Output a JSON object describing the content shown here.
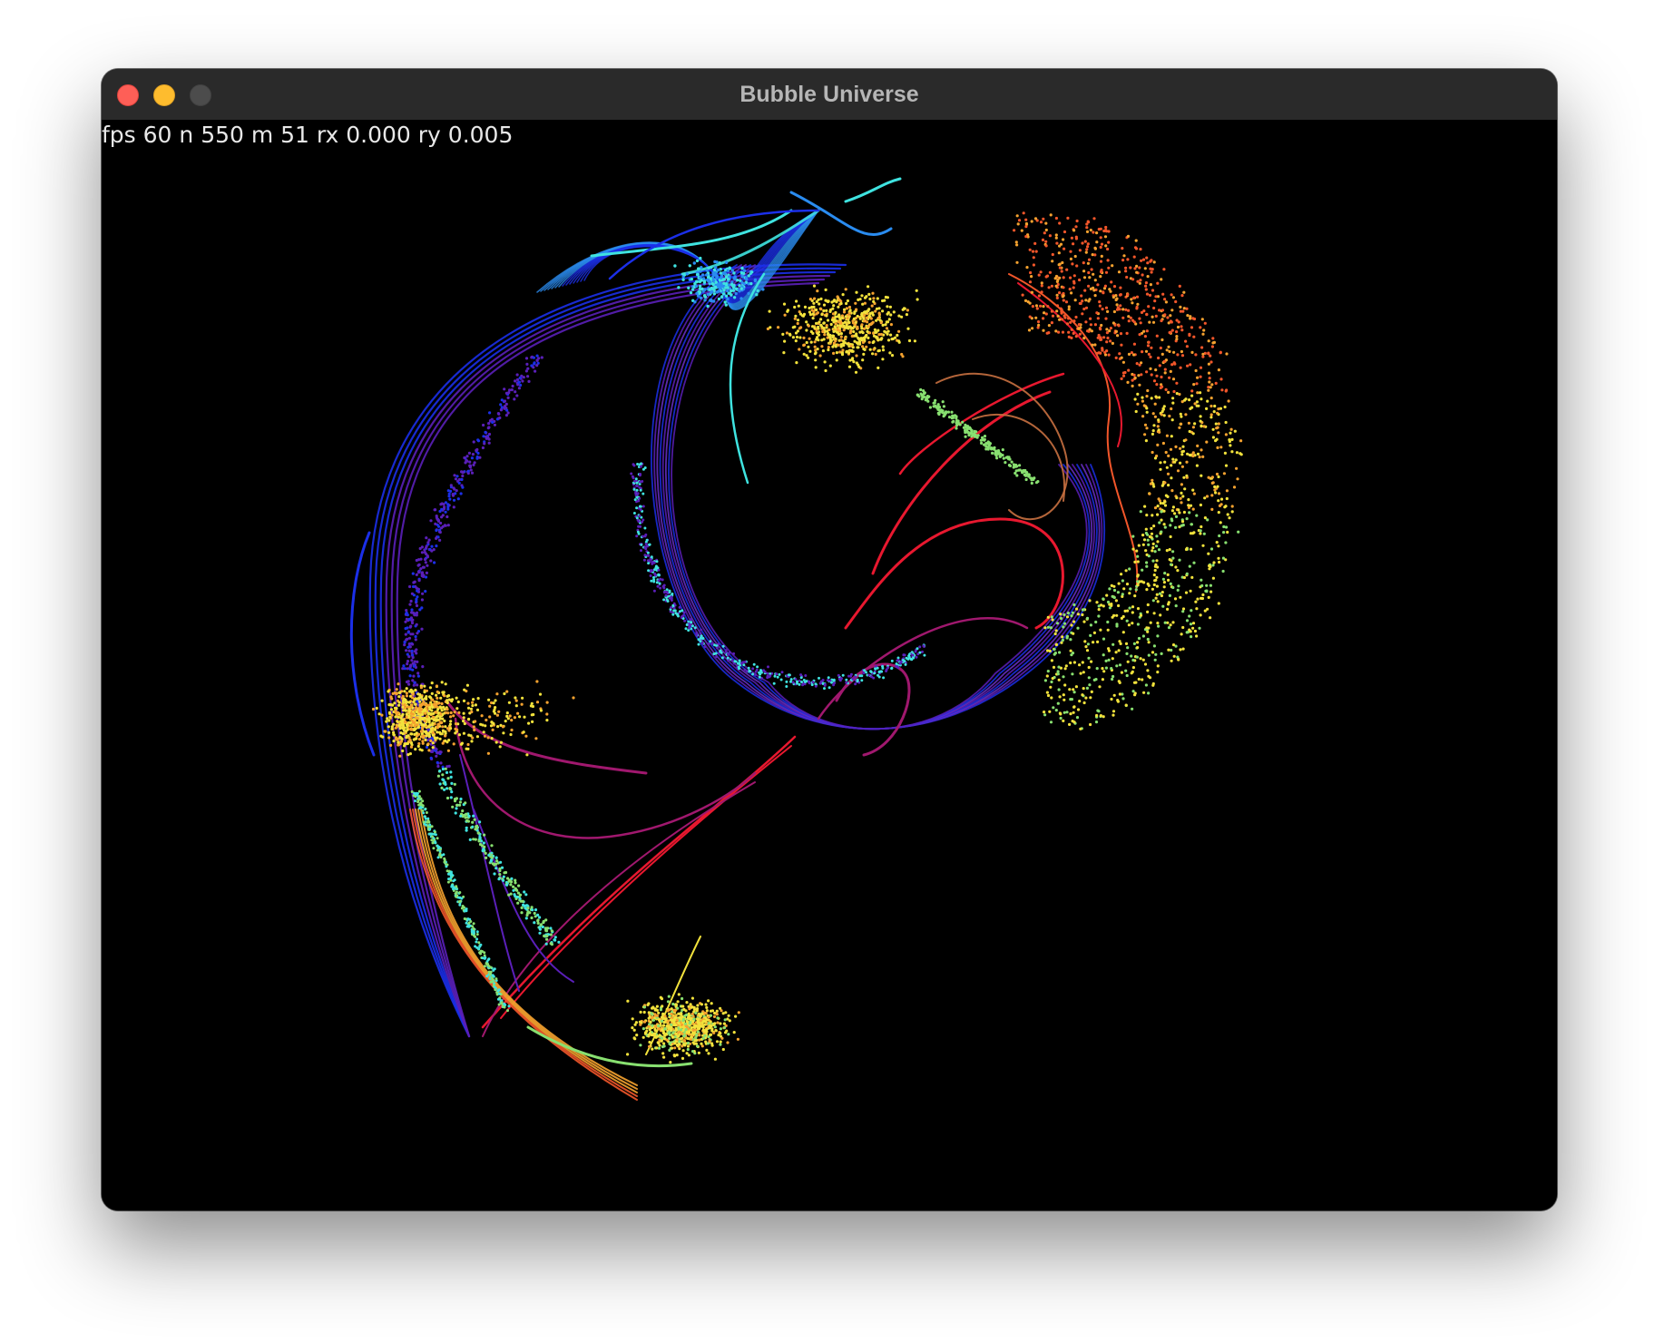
{
  "window": {
    "title": "Bubble Universe"
  },
  "stats": {
    "text": "fps 60 n 550 m 51 rx 0.000 ry 0.005"
  },
  "visualization": {
    "name": "bubble-universe-particle-render",
    "background": "#000000",
    "palette": [
      "#1b2fe8",
      "#2a8cf0",
      "#3fe3e0",
      "#88e070",
      "#f2e23c",
      "#f5a22f",
      "#f2562a",
      "#e8182f",
      "#a0186e",
      "#5a1fb8"
    ]
  }
}
